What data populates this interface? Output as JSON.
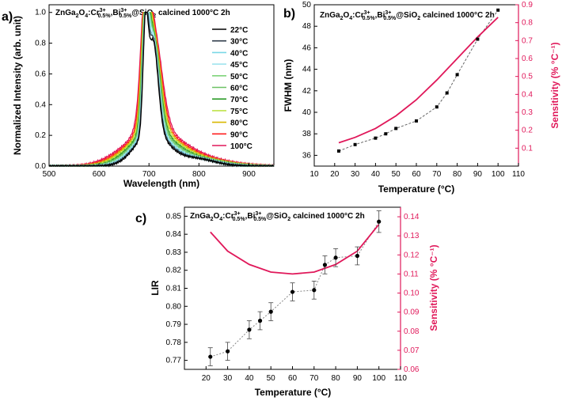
{
  "colors": {
    "pink": "#e0185a",
    "spectrum": [
      "#000000",
      "#2f3b4a",
      "#7ad7e6",
      "#9fe4ee",
      "#7fd47a",
      "#6cc264",
      "#2e9c2a",
      "#bfe34a",
      "#d9b800",
      "#ff2020",
      "#e0185a"
    ]
  },
  "panels": {
    "a": {
      "label": "a)",
      "title_main": "ZnGa",
      "title_rest": "O",
      "title_subs": [
        "2",
        "4",
        "0.5%",
        "0.5%"
      ],
      "title_sups": [
        "3+",
        "3+"
      ],
      "title_parts": [
        ":Cr",
        ",Bi",
        "@SiO",
        " calcined 1000°C 2h"
      ],
      "sio_sub": "2"
    },
    "b": {
      "label": "b)"
    },
    "c": {
      "label": "c)"
    }
  },
  "chart_data": [
    {
      "id": "a",
      "type": "line",
      "xlabel": "Wavelength (nm)",
      "ylabel": "Normalized Intensity (arb. unit)",
      "xlim": [
        500,
        950
      ],
      "ylim": [
        0,
        1.05
      ],
      "xticks": [
        "500",
        "600",
        "700",
        "800",
        "900"
      ],
      "yticks": [
        "0.0",
        "0.2",
        "0.4",
        "0.6",
        "0.8",
        "1.0"
      ],
      "legend": [
        "22°C",
        "30°C",
        "40°C",
        "45°C",
        "50°C",
        "60°C",
        "70°C",
        "75°C",
        "80°C",
        "90°C",
        "100°C"
      ],
      "legend_position": "right",
      "peak_wavelength": 693,
      "shoulder_wavelength": 708,
      "shoulder_height": [
        0.76,
        0.78,
        0.78,
        0.8,
        0.8,
        0.8,
        0.81,
        0.81,
        0.82,
        0.83,
        0.84
      ],
      "width_scale": [
        1.0,
        1.05,
        1.1,
        1.15,
        1.2,
        1.26,
        1.33,
        1.4,
        1.5,
        1.6,
        1.72
      ]
    },
    {
      "id": "b",
      "type": "scatter",
      "xlabel": "Temperature (°C)",
      "ylabel": "FWHM (nm)",
      "y2label": "Sensitivity (% °C⁻¹)",
      "xlim": [
        10,
        110
      ],
      "ylim": [
        35,
        50
      ],
      "y2lim": [
        0.0,
        0.9
      ],
      "xticks": [
        "10",
        "20",
        "30",
        "40",
        "50",
        "60",
        "70",
        "80",
        "90",
        "100",
        "110"
      ],
      "yticks": [
        "36",
        "38",
        "40",
        "42",
        "44",
        "46",
        "48",
        "50"
      ],
      "y2ticks": [
        "0.1",
        "0.2",
        "0.3",
        "0.4",
        "0.5",
        "0.6",
        "0.7",
        "0.8",
        "0.9"
      ],
      "x": [
        22,
        30,
        40,
        45,
        50,
        60,
        70,
        75,
        80,
        90,
        100
      ],
      "y": [
        36.4,
        37.0,
        37.6,
        38.0,
        38.5,
        39.2,
        40.5,
        41.8,
        43.5,
        46.8,
        49.5
      ],
      "sensitivity_x": [
        22,
        30,
        40,
        50,
        60,
        70,
        80,
        90,
        100
      ],
      "sensitivity_y": [
        0.13,
        0.16,
        0.21,
        0.28,
        0.37,
        0.48,
        0.6,
        0.72,
        0.83
      ]
    },
    {
      "id": "c",
      "type": "scatter",
      "xlabel": "Temperature (°C)",
      "ylabel": "LIR",
      "y2label": "Sensitivity (% °C⁻¹)",
      "xlim": [
        10,
        110
      ],
      "ylim": [
        0.765,
        0.855
      ],
      "y2lim": [
        0.06,
        0.145
      ],
      "xticks": [
        "20",
        "30",
        "40",
        "50",
        "60",
        "70",
        "80",
        "90",
        "100",
        "110"
      ],
      "yticks": [
        "0.77",
        "0.78",
        "0.79",
        "0.80",
        "0.81",
        "0.82",
        "0.83",
        "0.84",
        "0.85"
      ],
      "y2ticks": [
        "0.06",
        "0.07",
        "0.08",
        "0.09",
        "0.10",
        "0.11",
        "0.12",
        "0.13",
        "0.14"
      ],
      "x": [
        22,
        30,
        40,
        45,
        50,
        60,
        70,
        75,
        80,
        90,
        100
      ],
      "y": [
        0.772,
        0.775,
        0.787,
        0.792,
        0.797,
        0.808,
        0.809,
        0.823,
        0.827,
        0.828,
        0.847
      ],
      "err": [
        0.005,
        0.005,
        0.005,
        0.005,
        0.005,
        0.005,
        0.005,
        0.005,
        0.005,
        0.005,
        0.006
      ],
      "sensitivity_x": [
        22,
        30,
        40,
        50,
        60,
        70,
        80,
        90,
        100
      ],
      "sensitivity_y": [
        0.132,
        0.122,
        0.115,
        0.111,
        0.11,
        0.111,
        0.115,
        0.122,
        0.136
      ]
    }
  ]
}
